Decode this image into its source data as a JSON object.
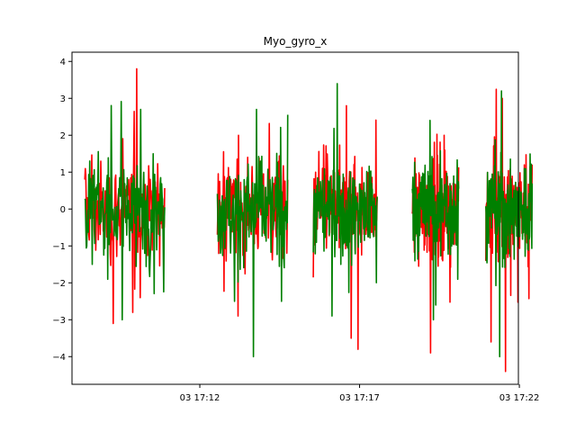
{
  "chart_data": {
    "type": "line",
    "title": "Myo_gyro_x",
    "xlabel": "",
    "ylabel": "",
    "ylim": [
      -4.75,
      4.25
    ],
    "yticks": [
      -4,
      -3,
      -2,
      -1,
      0,
      1,
      2,
      3,
      4
    ],
    "xlim_minutes": [
      -4.0,
      9.97
    ],
    "x_tick_values_minutes": [
      0,
      5,
      10
    ],
    "x_tick_labels": [
      "03 17:12",
      "03 17:17",
      "03 17:22"
    ],
    "grid": false,
    "legend": "none",
    "segments_minutes": [
      [
        -3.6,
        -1.1
      ],
      [
        0.55,
        2.75
      ],
      [
        3.55,
        5.55
      ],
      [
        6.65,
        8.1
      ],
      [
        8.95,
        10.4
      ]
    ],
    "series": [
      {
        "color": "#ff0000",
        "peak_values": [
          3.8,
          2.0,
          2.8,
          2.0,
          3.0,
          3.1
        ],
        "trough_values": [
          -2.8,
          -3.1,
          -2.9,
          -3.5,
          -3.8,
          -3.9,
          -4.4,
          -3.6
        ]
      },
      {
        "color": "#008000",
        "peak_values": [
          2.7,
          2.7,
          3.4,
          2.4,
          3.2
        ],
        "trough_values": [
          -3.0,
          -4.0,
          -2.5,
          -2.9,
          -2.6
        ]
      }
    ]
  }
}
